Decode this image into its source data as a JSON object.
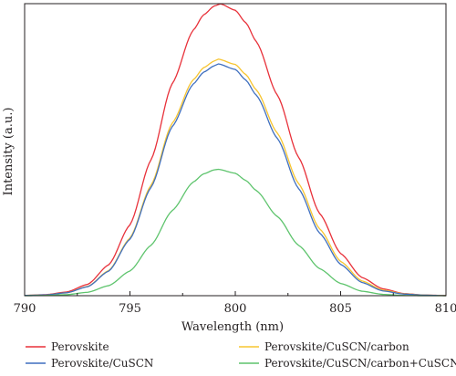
{
  "chart_data": {
    "type": "line",
    "title": "",
    "xlabel": "Wavelength (nm)",
    "ylabel": "Intensity (a.u.)",
    "xlim": [
      790,
      810
    ],
    "ylim": [
      0,
      1.1
    ],
    "x_ticks": [
      790,
      795,
      800,
      805,
      810
    ],
    "y_ticks": [],
    "grid": false,
    "legend_placement": "bottom",
    "colors": {
      "axis": "#231f20",
      "red": "#e8313a",
      "yellow": "#f7c531",
      "blue": "#3f6fbf",
      "green": "#5ec46d"
    },
    "series": [
      {
        "name": "Perovskite",
        "color": "#e8313a",
        "x": [
          790,
          791,
          792,
          793,
          794,
          795,
          796,
          797,
          798,
          798.5,
          799,
          799.3,
          800,
          800.5,
          801,
          802,
          803,
          804,
          805,
          806,
          807,
          808,
          809,
          810
        ],
        "y": [
          0.001,
          0.004,
          0.014,
          0.043,
          0.117,
          0.267,
          0.512,
          0.798,
          1.0,
          1.058,
          1.091,
          1.099,
          1.075,
          1.028,
          0.957,
          0.755,
          0.522,
          0.31,
          0.159,
          0.069,
          0.026,
          0.008,
          0.002,
          0.001
        ]
      },
      {
        "name": "Perovskite/CuSCN/carbon",
        "color": "#f7c531",
        "x": [
          790,
          791,
          792,
          793,
          794,
          795,
          796,
          797,
          798,
          798.5,
          799,
          799.2,
          800,
          800.5,
          801,
          802,
          803,
          804,
          805,
          806,
          807,
          808,
          809,
          810
        ],
        "y": [
          0.001,
          0.003,
          0.011,
          0.035,
          0.095,
          0.217,
          0.416,
          0.649,
          0.813,
          0.859,
          0.884,
          0.891,
          0.871,
          0.833,
          0.775,
          0.612,
          0.423,
          0.252,
          0.129,
          0.056,
          0.021,
          0.007,
          0.002,
          0.0
        ]
      },
      {
        "name": "Perovskite/CuSCN",
        "color": "#3f6fbf",
        "x": [
          790,
          791,
          792,
          793,
          794,
          795,
          796,
          797,
          798,
          798.5,
          799,
          799.2,
          800,
          800.5,
          801,
          802,
          803,
          804,
          805,
          806,
          807,
          808,
          809,
          810
        ],
        "y": [
          0.001,
          0.003,
          0.011,
          0.034,
          0.093,
          0.213,
          0.408,
          0.636,
          0.797,
          0.842,
          0.866,
          0.873,
          0.852,
          0.812,
          0.755,
          0.592,
          0.404,
          0.236,
          0.118,
          0.05,
          0.018,
          0.006,
          0.002,
          0.0
        ]
      },
      {
        "name": "Perovskite/CuSCN/carbon+CuSCN",
        "color": "#5ec46d",
        "x": [
          790,
          791,
          792,
          793,
          794,
          795,
          796,
          797,
          798,
          798.5,
          799,
          799.2,
          800,
          800.5,
          801,
          802,
          803,
          804,
          805,
          806,
          807,
          808,
          809,
          810
        ],
        "y": [
          0.0,
          0.001,
          0.004,
          0.013,
          0.038,
          0.093,
          0.19,
          0.32,
          0.428,
          0.459,
          0.474,
          0.476,
          0.461,
          0.434,
          0.396,
          0.298,
          0.19,
          0.102,
          0.046,
          0.017,
          0.005,
          0.001,
          0.0,
          0.0
        ]
      }
    ]
  }
}
